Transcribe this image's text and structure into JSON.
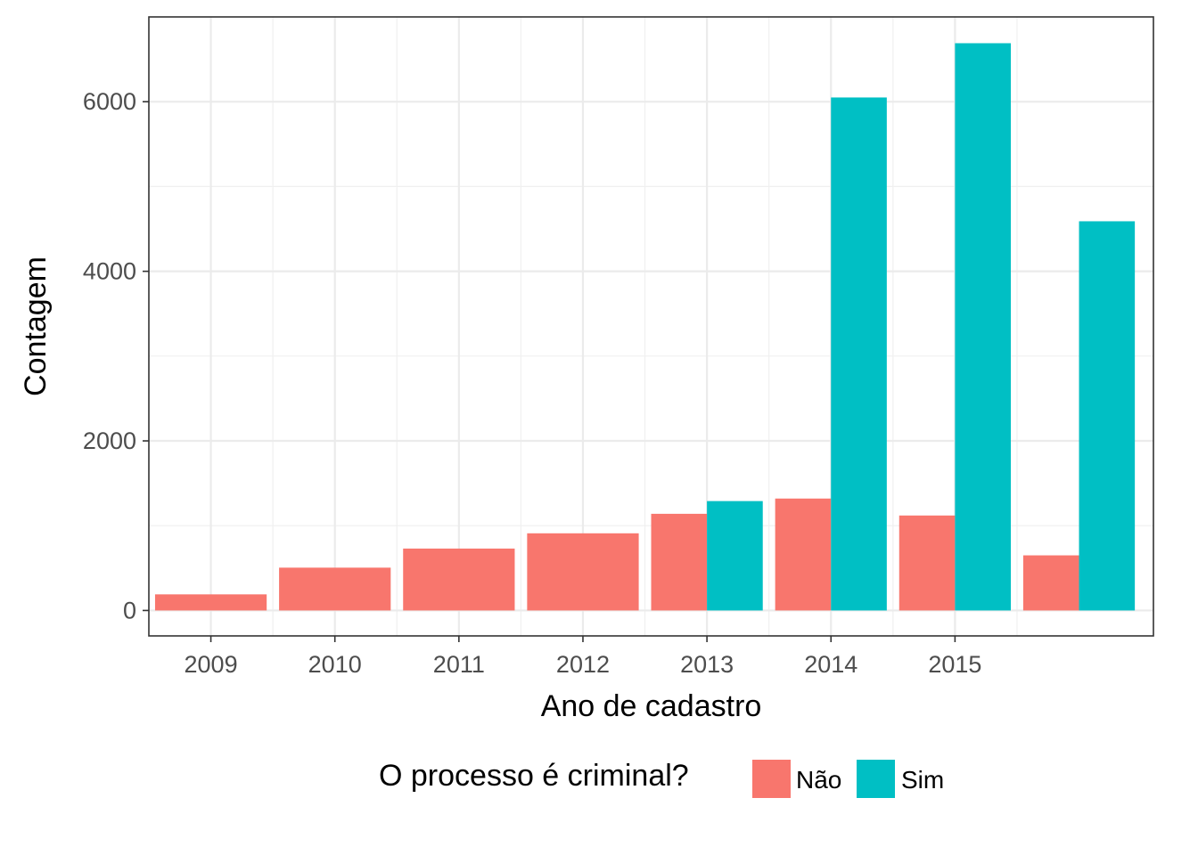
{
  "chart_data": {
    "type": "bar",
    "xlabel": "Ano de cadastro",
    "ylabel": "Contagem",
    "ylim": [
      -300,
      7000
    ],
    "yticks": [
      0,
      2000,
      4000,
      6000
    ],
    "ytick_labels": [
      "0",
      "2000",
      "4000",
      "6000"
    ],
    "xlim": [
      2008.5,
      2016.6
    ],
    "xticks": [
      2009,
      2010,
      2011,
      2012,
      2013,
      2014,
      2015
    ],
    "xtick_labels": [
      "2009",
      "2010",
      "2011",
      "2012",
      "2013",
      "2014",
      "2015"
    ],
    "grid": true,
    "legend": {
      "title": "O processo é criminal?",
      "position": "bottom",
      "entries": [
        {
          "label": "Não",
          "color": "#F8766D"
        },
        {
          "label": "Sim",
          "color": "#00BFC4"
        }
      ]
    },
    "series": [
      {
        "key": "nao",
        "label": "Não",
        "color": "#F8766D",
        "bars": [
          {
            "x0": 2008.55,
            "x1": 2009.45,
            "value": 190
          },
          {
            "x0": 2009.55,
            "x1": 2010.45,
            "value": 505
          },
          {
            "x0": 2010.55,
            "x1": 2011.45,
            "value": 730
          },
          {
            "x0": 2011.55,
            "x1": 2012.45,
            "value": 910
          },
          {
            "x0": 2012.55,
            "x1": 2013.0,
            "value": 1140
          },
          {
            "x0": 2013.55,
            "x1": 2014.0,
            "value": 1320
          },
          {
            "x0": 2014.55,
            "x1": 2015.0,
            "value": 1120
          },
          {
            "x0": 2015.55,
            "x1": 2016.0,
            "value": 650
          }
        ]
      },
      {
        "key": "sim",
        "label": "Sim",
        "color": "#00BFC4",
        "bars": [
          {
            "x0": 2013.0,
            "x1": 2013.45,
            "value": 1290
          },
          {
            "x0": 2014.0,
            "x1": 2014.45,
            "value": 6050
          },
          {
            "x0": 2015.0,
            "x1": 2015.45,
            "value": 6690
          },
          {
            "x0": 2016.0,
            "x1": 2016.45,
            "value": 4590
          }
        ]
      }
    ]
  }
}
